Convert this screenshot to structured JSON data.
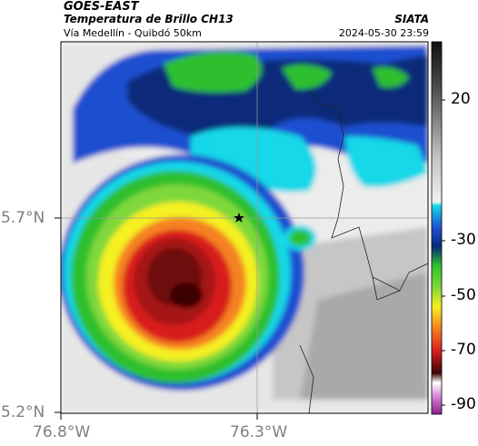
{
  "header": {
    "satellite": "GOES-EAST",
    "product": "Temperatura de Brillo CH13",
    "route": "Vía Medellín - Quibdó 50km",
    "org": "SIATA",
    "datetime": "2024-05-30 23:59"
  },
  "axes": {
    "y_ticks": [
      {
        "label": "5.7°N",
        "value": 5.7
      },
      {
        "label": "5.2°N",
        "value": 5.2
      }
    ],
    "x_ticks": [
      {
        "label": "76.8°W",
        "value": -76.8
      },
      {
        "label": "76.3°W",
        "value": -76.3
      }
    ]
  },
  "colorbar": {
    "labels": [
      "20",
      "-30",
      "-50",
      "-70",
      "-90"
    ],
    "range": [
      -95,
      40
    ],
    "unit": "brightness temperature"
  },
  "colors": {
    "cold_core": "#6e0d0d",
    "red": "#d81e1e",
    "orange": "#f58220",
    "yellow": "#f5f022",
    "green": "#2ebf2e",
    "cyan": "#17d8e8",
    "blue": "#1e4fd0",
    "navy": "#0a2a7a",
    "cloud_gray": "#c8c8c8"
  },
  "marker": {
    "icon": "star-icon",
    "lon": -76.33,
    "lat": 5.7
  }
}
